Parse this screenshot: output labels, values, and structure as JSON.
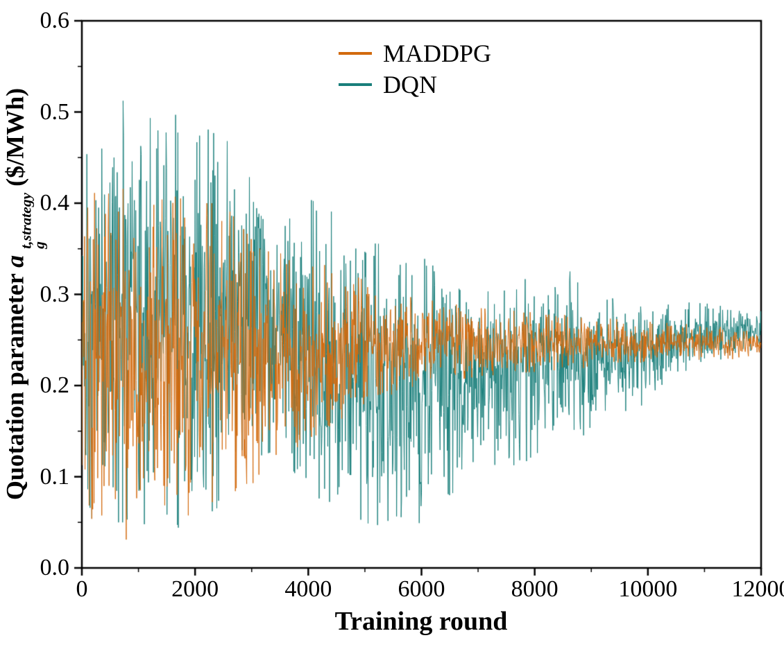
{
  "figure": {
    "background": "#ffffff"
  },
  "chart_data": {
    "type": "line",
    "title": "",
    "xlabel": "Training round",
    "ylabel": {
      "prefix": "Quotation parameter ",
      "symbol": "a",
      "subscript": "g",
      "superscript": "t,strategy",
      "suffix": "($/MWh)"
    },
    "xlim": [
      0,
      12000
    ],
    "ylim": [
      0.0,
      0.6
    ],
    "xticks": [
      "0",
      "2000",
      "4000",
      "6000",
      "8000",
      "10000",
      "12000"
    ],
    "yticks": [
      "0.0",
      "0.1",
      "0.2",
      "0.3",
      "0.4",
      "0.5",
      "0.6"
    ],
    "grid": false,
    "legend": {
      "position": "top-center",
      "entries": [
        "MADDPG",
        "DQN"
      ]
    },
    "series": [
      {
        "name": "MADDPG",
        "color": "#d26a0e",
        "description": "noisy oscillation envelope [x, min, max] converging to ~0.23-0.26",
        "envelope": [
          [
            0,
            0.05,
            0.46
          ],
          [
            200,
            0.01,
            0.47
          ],
          [
            500,
            0.005,
            0.46
          ],
          [
            800,
            0.005,
            0.44
          ],
          [
            1000,
            0.03,
            0.42
          ],
          [
            1500,
            0.05,
            0.41
          ],
          [
            2000,
            0.06,
            0.4
          ],
          [
            2500,
            0.08,
            0.4
          ],
          [
            3000,
            0.09,
            0.36
          ],
          [
            3500,
            0.12,
            0.345
          ],
          [
            4000,
            0.14,
            0.335
          ],
          [
            4500,
            0.16,
            0.33
          ],
          [
            5000,
            0.18,
            0.315
          ],
          [
            5500,
            0.19,
            0.3
          ],
          [
            6000,
            0.2,
            0.295
          ],
          [
            7000,
            0.21,
            0.285
          ],
          [
            8000,
            0.215,
            0.28
          ],
          [
            9000,
            0.22,
            0.275
          ],
          [
            10000,
            0.225,
            0.27
          ],
          [
            11000,
            0.228,
            0.266
          ],
          [
            12000,
            0.23,
            0.262
          ]
        ]
      },
      {
        "name": "DQN",
        "color": "#1a7f7b",
        "description": "noisy oscillation envelope [x, min, max] converging to ~0.24-0.29",
        "envelope": [
          [
            0,
            0.06,
            0.5
          ],
          [
            300,
            0.05,
            0.52
          ],
          [
            1000,
            0.05,
            0.51
          ],
          [
            1500,
            0.04,
            0.5
          ],
          [
            2000,
            0.05,
            0.49
          ],
          [
            2500,
            0.07,
            0.47
          ],
          [
            3000,
            0.12,
            0.455
          ],
          [
            3500,
            0.13,
            0.43
          ],
          [
            4000,
            0.08,
            0.405
          ],
          [
            4500,
            0.07,
            0.39
          ],
          [
            5000,
            0.05,
            0.365
          ],
          [
            5500,
            0.04,
            0.345
          ],
          [
            6000,
            0.05,
            0.34
          ],
          [
            6500,
            0.08,
            0.33
          ],
          [
            7000,
            0.1,
            0.325
          ],
          [
            7500,
            0.11,
            0.32
          ],
          [
            8000,
            0.12,
            0.315
          ],
          [
            8500,
            0.13,
            0.33
          ],
          [
            9000,
            0.15,
            0.31
          ],
          [
            9500,
            0.17,
            0.3
          ],
          [
            10000,
            0.18,
            0.295
          ],
          [
            10500,
            0.2,
            0.292
          ],
          [
            11000,
            0.22,
            0.29
          ],
          [
            11500,
            0.235,
            0.288
          ],
          [
            12000,
            0.24,
            0.285
          ]
        ]
      }
    ]
  }
}
